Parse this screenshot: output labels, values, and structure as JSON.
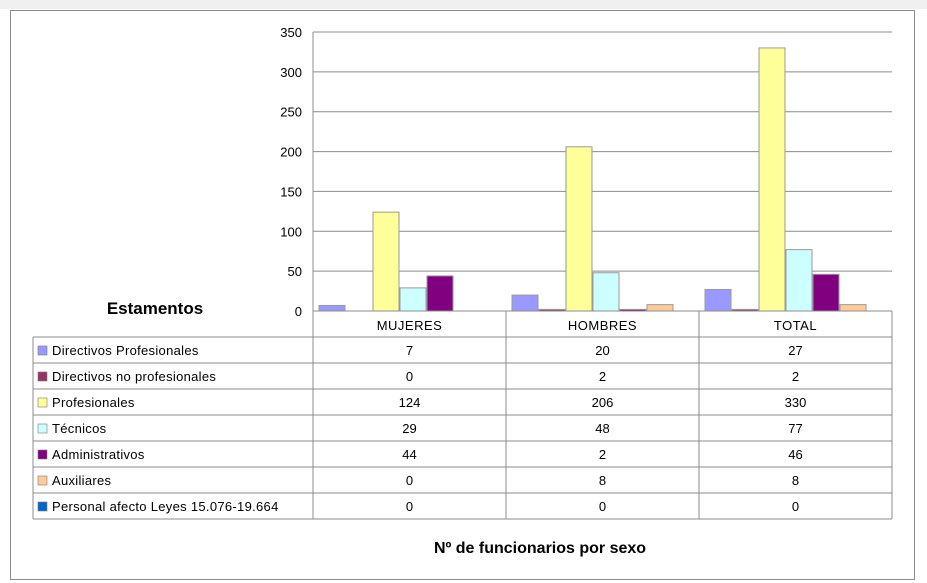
{
  "chart_data": {
    "type": "bar",
    "title": "Nº de funcionarios por sexo",
    "table_header": "Estamentos",
    "categories": [
      "MUJERES",
      "HOMBRES",
      "TOTAL"
    ],
    "ylim": [
      0,
      350
    ],
    "yticks": [
      0,
      50,
      100,
      150,
      200,
      250,
      300,
      350
    ],
    "grid": true,
    "legend_placement": "data-table-left",
    "series": [
      {
        "name": "Directivos Profesionales",
        "values": [
          7,
          20,
          27
        ],
        "color": "#9999ff"
      },
      {
        "name": "Directivos no profesionales",
        "values": [
          0,
          2,
          2
        ],
        "color": "#993366"
      },
      {
        "name": "Profesionales",
        "values": [
          124,
          206,
          330
        ],
        "color": "#ffff99"
      },
      {
        "name": "Técnicos",
        "values": [
          29,
          48,
          77
        ],
        "color": "#ccffff"
      },
      {
        "name": "Administrativos",
        "values": [
          44,
          2,
          46
        ],
        "color": "#800080"
      },
      {
        "name": "Auxiliares",
        "values": [
          0,
          8,
          8
        ],
        "color": "#ffcc99"
      },
      {
        "name": "Personal afecto Leyes 15.076-19.664",
        "values": [
          0,
          0,
          0
        ],
        "color": "#0066cc"
      }
    ]
  }
}
